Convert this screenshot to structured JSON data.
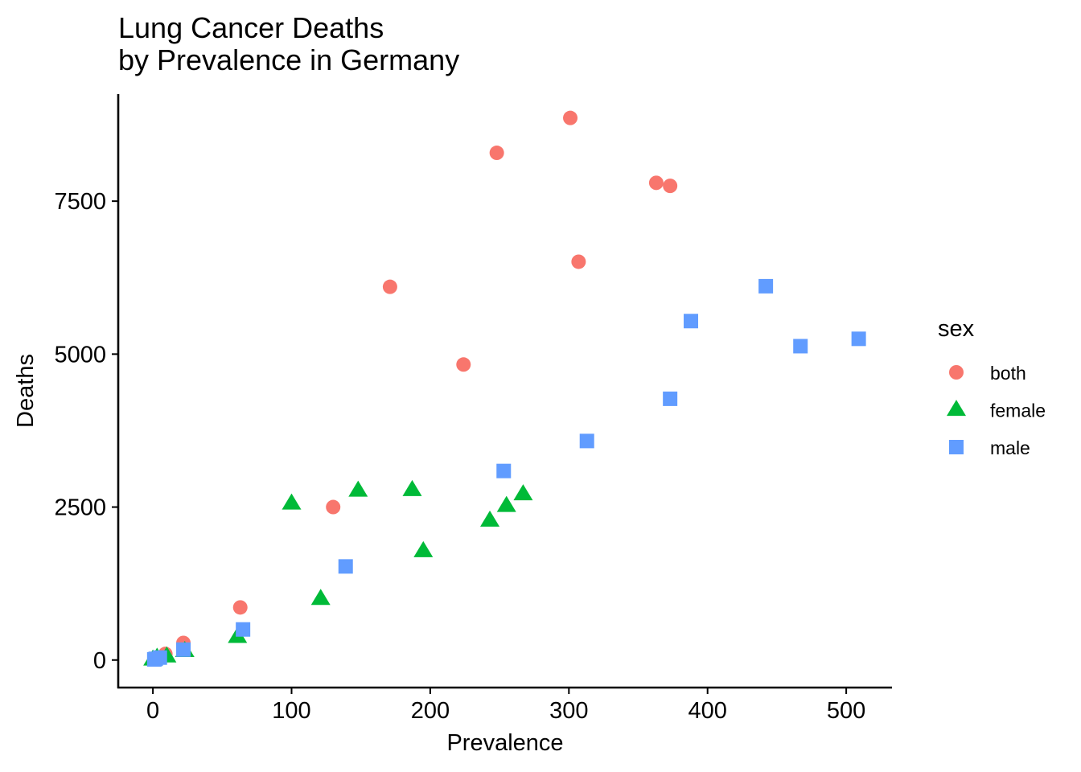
{
  "chart_data": {
    "type": "scatter",
    "title": "Lung Cancer Deaths\nby Prevalence in Germany",
    "xlabel": "Prevalence",
    "ylabel": "Deaths",
    "xlim": [
      -25,
      533
    ],
    "ylim": [
      -450,
      9250
    ],
    "xticks": [
      0,
      100,
      200,
      300,
      400,
      500
    ],
    "yticks": [
      0,
      2500,
      5000,
      7500
    ],
    "grid": false,
    "legend": {
      "title": "sex",
      "position": "right"
    },
    "series": [
      {
        "name": "both",
        "color": "#F8766D",
        "shape": "circle",
        "points": [
          [
            1,
            10
          ],
          [
            3,
            30
          ],
          [
            9,
            100
          ],
          [
            22,
            280
          ],
          [
            63,
            860
          ],
          [
            130,
            2500
          ],
          [
            171,
            6100
          ],
          [
            224,
            4830
          ],
          [
            248,
            8290
          ],
          [
            301,
            8860
          ],
          [
            307,
            6510
          ],
          [
            363,
            7800
          ],
          [
            373,
            7750
          ]
        ]
      },
      {
        "name": "female",
        "color": "#00BA38",
        "shape": "triangle",
        "points": [
          [
            0,
            10
          ],
          [
            3,
            40
          ],
          [
            10,
            60
          ],
          [
            23,
            150
          ],
          [
            61,
            380
          ],
          [
            100,
            2560
          ],
          [
            121,
            1000
          ],
          [
            148,
            2770
          ],
          [
            187,
            2780
          ],
          [
            195,
            1780
          ],
          [
            243,
            2280
          ],
          [
            255,
            2520
          ],
          [
            267,
            2710
          ]
        ]
      },
      {
        "name": "male",
        "color": "#619CFF",
        "shape": "square",
        "points": [
          [
            1,
            10
          ],
          [
            2,
            20
          ],
          [
            5,
            40
          ],
          [
            22,
            170
          ],
          [
            65,
            500
          ],
          [
            139,
            1530
          ],
          [
            253,
            3090
          ],
          [
            313,
            3580
          ],
          [
            373,
            4270
          ],
          [
            388,
            5540
          ],
          [
            442,
            6110
          ],
          [
            467,
            5130
          ],
          [
            509,
            5250
          ]
        ]
      }
    ]
  }
}
